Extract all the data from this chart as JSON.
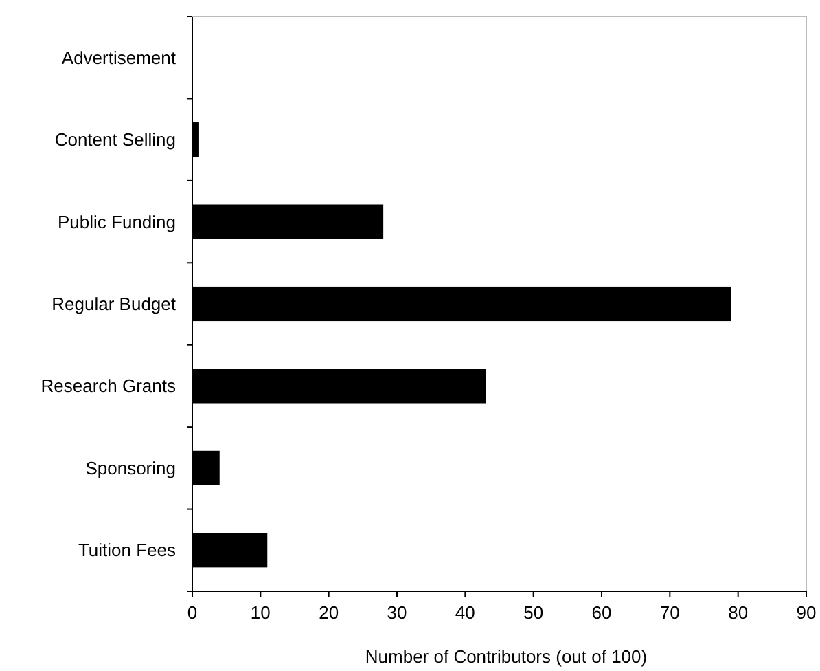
{
  "chart_data": {
    "type": "bar",
    "orientation": "horizontal",
    "xlabel": "Number of Contributors (out of 100)",
    "categories": [
      "Advertisement",
      "Content Selling",
      "Public Funding",
      "Regular Budget",
      "Research Grants",
      "Sponsoring",
      "Tuition Fees"
    ],
    "values": [
      0,
      1,
      28,
      79,
      43,
      4,
      11
    ],
    "color": "#000000",
    "xlim": [
      0,
      90
    ],
    "xticks": [
      0,
      10,
      20,
      30,
      40,
      50,
      60,
      70,
      80,
      90
    ]
  }
}
